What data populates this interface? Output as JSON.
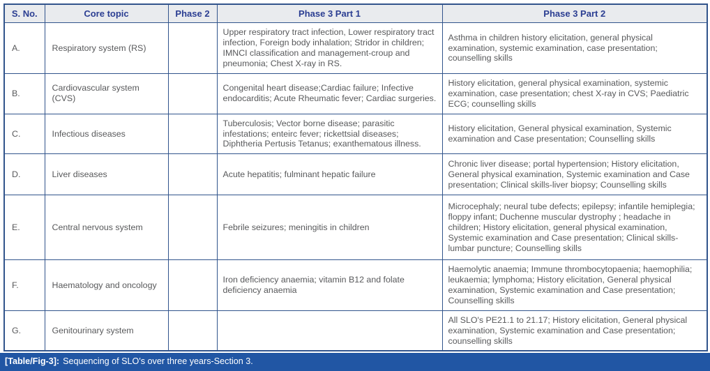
{
  "colors": {
    "border_color": "#31548c",
    "header_bg": "#e9ebee",
    "header_text": "#2b3e92",
    "body_text": "#58595b",
    "caption_bg": "#2156a4",
    "caption_text": "#ffffff"
  },
  "table": {
    "columns": [
      {
        "key": "sno",
        "label": "S. No."
      },
      {
        "key": "core_topic",
        "label": "Core topic"
      },
      {
        "key": "phase2",
        "label": "Phase 2"
      },
      {
        "key": "phase3_part1",
        "label": "Phase 3 Part 1"
      },
      {
        "key": "phase3_part2",
        "label": "Phase 3 Part 2"
      }
    ],
    "rows": [
      {
        "id": "a",
        "sno": "A.",
        "core_topic": "Respiratory system (RS)",
        "phase2": "",
        "phase3_part1": "Upper respiratory tract infection, Lower respiratory tract infection, Foreign body inhalation; Stridor in children; IMNCI classification and management-croup and pneumonia; Chest X-ray in RS.",
        "phase3_part2": "Asthma in children history elicitation, general physical examination, systemic examination, case presentation; counselling skills"
      },
      {
        "id": "b",
        "sno": "B.",
        "core_topic": "Cardiovascular system (CVS)",
        "phase2": "",
        "phase3_part1": "Congenital heart disease;Cardiac failure; Infective endocarditis; Acute Rheumatic fever; Cardiac surgeries.",
        "phase3_part2": "History elicitation, general physical examination, systemic examination, case presentation; chest X-ray in CVS; Paediatric ECG; counselling skills"
      },
      {
        "id": "c",
        "sno": "C.",
        "core_topic": "Infectious diseases",
        "phase2": "",
        "phase3_part1": "Tuberculosis; Vector borne disease; parasitic infestations; enteirc fever; rickettsial diseases; Diphtheria Pertusis Tetanus; exanthematous illness.",
        "phase3_part2": "History elicitation, General physical examination, Systemic examination and Case presentation; Counselling skills"
      },
      {
        "id": "d",
        "sno": "D.",
        "core_topic": "Liver diseases",
        "phase2": "",
        "phase3_part1": "Acute hepatitis; fulminant hepatic failure",
        "phase3_part2": "Chronic liver disease; portal hypertension; History elicitation, General physical examination, Systemic examination and Case presentation; Clinical skills-liver biopsy; Counselling skills"
      },
      {
        "id": "e",
        "sno": "E.",
        "core_topic": "Central nervous system",
        "phase2": "",
        "phase3_part1": "Febrile seizures; meningitis in children",
        "phase3_part2": "Microcephaly; neural tube defects; epilepsy; infantile hemiplegia; floppy infant; Duchenne muscular dystrophy ; headache in children; History elicitation, general physical examination, Systemic examination and Case presentation; Clinical skills-lumbar puncture; Counselling skills"
      },
      {
        "id": "f",
        "sno": "F.",
        "core_topic": "Haematology and oncology",
        "phase2": "",
        "phase3_part1": "Iron deficiency anaemia; vitamin B12 and folate deficiency anaemia",
        "phase3_part2": "Haemolytic anaemia; Immune thrombocytopaenia; haemophilia; leukaemia; lymphoma; History elicitation, General physical examination, Systemic examination and Case presentation; Counselling skills"
      },
      {
        "id": "g",
        "sno": "G.",
        "core_topic": "Genitourinary system",
        "phase2": "",
        "phase3_part1": "",
        "phase3_part2": "All SLO's PE21.1 to 21.17; History elicitation, General physical examination, Systemic examination and Case presentation; counselling skills"
      }
    ]
  },
  "caption": {
    "label": "[Table/Fig-3]:",
    "text": "Sequencing of SLO's over three years-Section 3."
  }
}
